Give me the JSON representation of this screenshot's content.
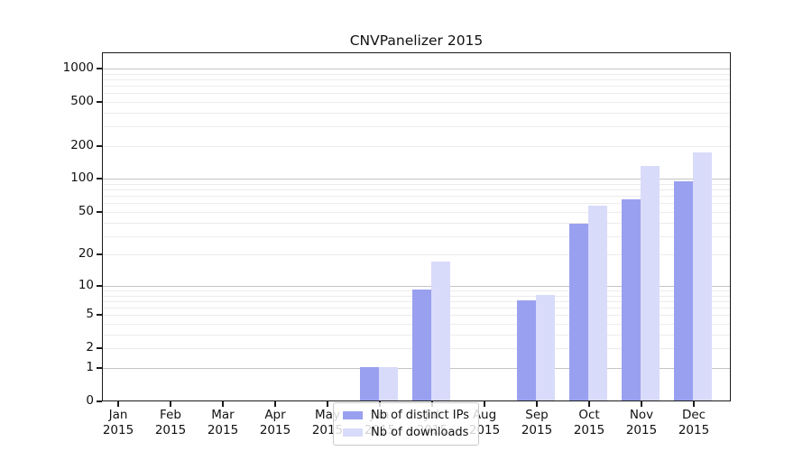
{
  "chart_data": {
    "type": "bar",
    "title": "CNVPanelizer 2015",
    "scale": "log1p",
    "categories": [
      "Jan",
      "Feb",
      "Mar",
      "Apr",
      "May",
      "Jun",
      "Jul",
      "Aug",
      "Sep",
      "Oct",
      "Nov",
      "Dec"
    ],
    "year_label": "2015",
    "series": [
      {
        "name": "Nb of distinct IPs",
        "color": "#9aa0f0",
        "values": [
          0,
          0,
          0,
          0,
          0,
          1,
          9,
          0,
          7,
          38,
          64,
          94
        ]
      },
      {
        "name": "Nb of downloads",
        "color": "#d9dbfa",
        "values": [
          0,
          0,
          0,
          0,
          0,
          1,
          17,
          0,
          8,
          56,
          129,
          170
        ]
      }
    ],
    "y_ticks": [
      0,
      1,
      2,
      5,
      10,
      20,
      50,
      100,
      200,
      500,
      1000
    ],
    "minor_gridlines": [
      2,
      3,
      4,
      5,
      6,
      7,
      8,
      9,
      20,
      30,
      40,
      50,
      60,
      70,
      80,
      90,
      200,
      300,
      400,
      500,
      600,
      700,
      800,
      900
    ],
    "decade_gridlines": [
      1,
      10,
      100,
      1000
    ],
    "ylim": [
      0,
      1400
    ],
    "legend_position": "lower center",
    "colors": {
      "grid_minor": "#ececec",
      "grid_major": "#c4c4c4",
      "axis": "#1a1a1a",
      "background": "#ffffff"
    }
  }
}
